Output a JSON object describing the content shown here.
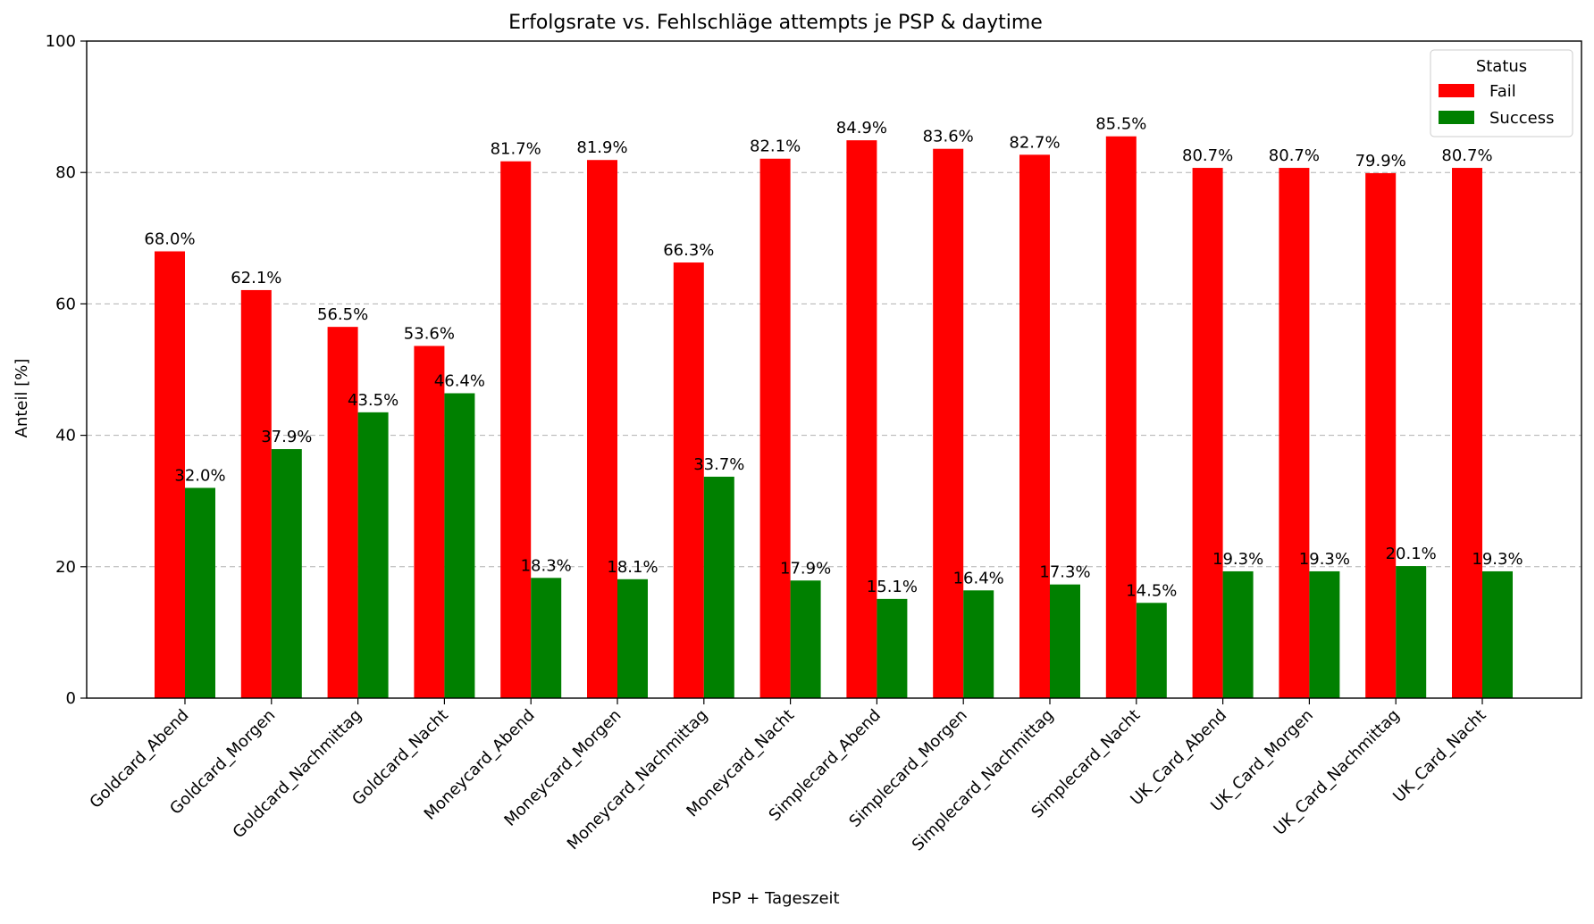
{
  "chart_data": {
    "type": "bar",
    "title": "Erfolgsrate vs. Fehlschläge attempts je PSP & daytime",
    "xlabel": "PSP + Tageszeit",
    "ylabel": "Anteil [%]",
    "ylim": [
      0,
      100
    ],
    "yticks": [
      "0",
      "20",
      "40",
      "60",
      "80",
      "100"
    ],
    "grid": "horizontal dashed",
    "legend": {
      "title": "Status",
      "placement": "top-right"
    },
    "categories": [
      "Goldcard_Abend",
      "Goldcard_Morgen",
      "Goldcard_Nachmittag",
      "Goldcard_Nacht",
      "Moneycard_Abend",
      "Moneycard_Morgen",
      "Moneycard_Nachmittag",
      "Moneycard_Nacht",
      "Simplecard_Abend",
      "Simplecard_Morgen",
      "Simplecard_Nachmittag",
      "Simplecard_Nacht",
      "UK_Card_Abend",
      "UK_Card_Morgen",
      "UK_Card_Nachmittag",
      "UK_Card_Nacht"
    ],
    "series": [
      {
        "name": "Fail",
        "color": "#ff0000",
        "values": [
          68.0,
          62.1,
          56.5,
          53.6,
          81.7,
          81.9,
          66.3,
          82.1,
          84.9,
          83.6,
          82.7,
          85.5,
          80.7,
          80.7,
          79.9,
          80.7
        ],
        "labels": [
          "68.0%",
          "62.1%",
          "56.5%",
          "53.6%",
          "81.7%",
          "81.9%",
          "66.3%",
          "82.1%",
          "84.9%",
          "83.6%",
          "82.7%",
          "85.5%",
          "80.7%",
          "80.7%",
          "79.9%",
          "80.7%"
        ]
      },
      {
        "name": "Success",
        "color": "#008000",
        "values": [
          32.0,
          37.9,
          43.5,
          46.4,
          18.3,
          18.1,
          33.7,
          17.9,
          15.1,
          16.4,
          17.3,
          14.5,
          19.3,
          19.3,
          20.1,
          19.3
        ],
        "labels": [
          "32.0%",
          "37.9%",
          "43.5%",
          "46.4%",
          "18.3%",
          "18.1%",
          "33.7%",
          "17.9%",
          "15.1%",
          "16.4%",
          "17.3%",
          "14.5%",
          "19.3%",
          "19.3%",
          "20.1%",
          "19.3%"
        ]
      }
    ]
  }
}
